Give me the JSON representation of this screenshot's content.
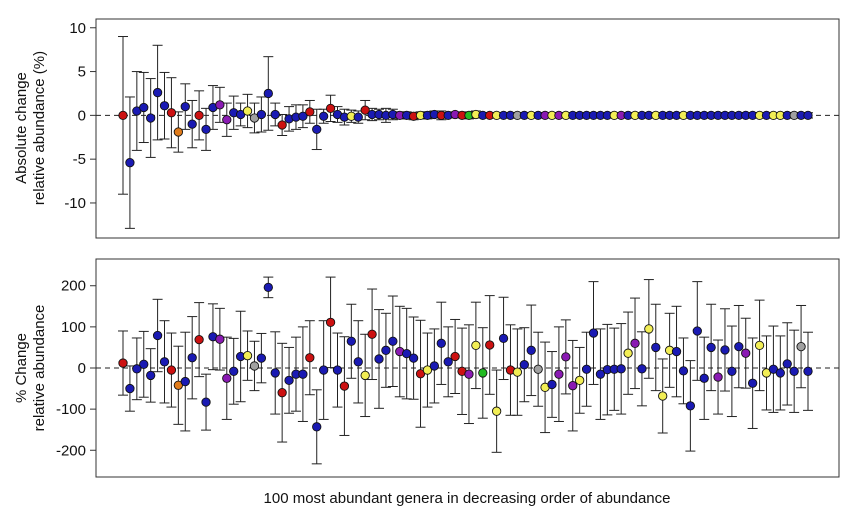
{
  "chart_data": [
    {
      "type": "scatter",
      "ylabel_lines": [
        "Absolute change",
        "relative abundance (%)"
      ],
      "ylim": [
        -14,
        11
      ],
      "yticks": [
        10,
        5,
        0,
        -5,
        -10
      ],
      "ytick_labels": [
        "10",
        "5",
        "0",
        "-5",
        "-10"
      ],
      "xlim": [
        -1,
        100
      ],
      "reference_line": {
        "y": 0,
        "style": "dashed"
      },
      "grid": false,
      "series": [
        {
          "x": [
            0,
            1,
            2,
            3,
            4,
            5,
            6,
            7,
            8,
            9,
            10,
            11,
            12,
            13,
            14,
            15,
            16,
            17,
            18,
            19,
            20,
            21,
            22,
            23,
            24,
            25,
            26,
            27,
            28,
            29,
            30,
            31,
            32,
            33,
            34,
            35,
            36,
            37,
            38,
            39,
            40,
            41,
            42,
            43,
            44,
            45,
            46,
            47,
            48,
            49,
            50,
            51,
            52,
            53,
            54,
            55,
            56,
            57,
            58,
            59,
            60,
            61,
            62,
            63,
            64,
            65,
            66,
            67,
            68,
            69,
            70,
            71,
            72,
            73,
            74,
            75,
            76,
            77,
            78,
            79,
            80,
            81,
            82,
            83,
            84,
            85,
            86,
            87,
            88,
            89,
            90,
            91,
            92,
            93,
            94,
            95,
            96,
            97,
            98,
            99
          ],
          "y": [
            0.0,
            -5.4,
            0.5,
            0.9,
            -0.3,
            2.6,
            1.1,
            0.3,
            -1.9,
            1.0,
            -1.0,
            0.0,
            -1.6,
            0.9,
            1.2,
            -0.5,
            0.3,
            0.1,
            0.5,
            -0.3,
            0.1,
            2.5,
            0.1,
            -1.1,
            -0.4,
            -0.2,
            -0.1,
            0.4,
            -1.6,
            -0.1,
            0.8,
            0.1,
            -0.2,
            -0.1,
            -0.2,
            0.6,
            0.1,
            0.1,
            0.0,
            0.1,
            0.0,
            0.0,
            -0.1,
            0.0,
            0.0,
            0.1,
            0.0,
            0.0,
            0.1,
            0.0,
            0.0,
            0.1,
            0.0,
            0.0,
            0.0,
            0.0,
            0.0,
            0.0,
            0.0,
            0.0,
            0.0,
            0.0,
            0.0,
            0.0,
            0.0,
            0.0,
            0.0,
            0.0,
            0.0,
            0.0,
            0.0,
            0.0,
            0.0,
            0.0,
            0.0,
            0.0,
            0.0,
            0.0,
            0.0,
            0.0,
            0.0,
            0.0,
            0.0,
            0.0,
            0.0,
            0.0,
            0.0,
            0.0,
            0.0,
            0.0,
            0.0,
            0.0,
            0.0,
            0.0,
            0.0,
            0.0,
            0.0,
            0.0,
            0.0,
            0.0
          ],
          "error": [
            9.0,
            7.5,
            4.5,
            4.0,
            4.5,
            5.4,
            3.8,
            4.0,
            2.3,
            2.6,
            2.7,
            2.8,
            2.4,
            2.5,
            2.0,
            1.9,
            1.9,
            1.3,
            1.9,
            1.7,
            2.0,
            4.2,
            1.3,
            1.2,
            1.4,
            1.4,
            1.3,
            1.3,
            2.3,
            0.8,
            1.5,
            0.9,
            0.9,
            0.7,
            0.7,
            1.1,
            0.7,
            0.6,
            0.8,
            0.6,
            0.4,
            0.4,
            0.4,
            0.4,
            0.4,
            0.4,
            0.5,
            0.3,
            0.3,
            0.3,
            0.4,
            0.4,
            0.3,
            0.3,
            0.3,
            0.3,
            0.3,
            0.3,
            0.3,
            0.3,
            0.3,
            0.3,
            0.3,
            0.3,
            0.3,
            0.3,
            0.3,
            0.3,
            0.3,
            0.3,
            0.3,
            0.3,
            0.3,
            0.3,
            0.3,
            0.3,
            0.3,
            0.3,
            0.3,
            0.3,
            0.3,
            0.3,
            0.3,
            0.3,
            0.3,
            0.3,
            0.3,
            0.3,
            0.3,
            0.3,
            0.3,
            0.3,
            0.3,
            0.3,
            0.3,
            0.3,
            0.3,
            0.3,
            0.3,
            0.3
          ],
          "colors": [
            "#cc1111",
            "#1a1ab3",
            "#1a1ab3",
            "#1a1ab3",
            "#1a1ab3",
            "#1a1ab3",
            "#1a1ab3",
            "#cc1111",
            "#e07b1a",
            "#1a1ab3",
            "#1a1ab3",
            "#cc1111",
            "#1a1ab3",
            "#1a1ab3",
            "#8a1ab3",
            "#8a1ab3",
            "#1a1ab3",
            "#1a1ab3",
            "#f2ee55",
            "#a0a0a0",
            "#1a1ab3",
            "#1a1ab3",
            "#1a1ab3",
            "#cc1111",
            "#1a1ab3",
            "#1a1ab3",
            "#1a1ab3",
            "#cc1111",
            "#1a1ab3",
            "#1a1ab3",
            "#cc1111",
            "#1a1ab3",
            "#1a1ab3",
            "#f2ee55",
            "#1a1ab3",
            "#cc1111",
            "#1a1ab3",
            "#1a1ab3",
            "#1a1ab3",
            "#1a1ab3",
            "#8a1ab3",
            "#1a1ab3",
            "#cc1111",
            "#f2ee55",
            "#1a1ab3",
            "#1a1ab3",
            "#cc1111",
            "#1a1ab3",
            "#8a1ab3",
            "#cc1111",
            "#22bb22",
            "#f2ee55",
            "#1a1ab3",
            "#cc1111",
            "#f2ee55",
            "#1a1ab3",
            "#1a1ab3",
            "#a0a0a0",
            "#1a1ab3",
            "#f2ee55",
            "#1a1ab3",
            "#8a1ab3",
            "#f2ee55",
            "#8a1ab3",
            "#f2ee55",
            "#1a1ab3",
            "#1a1ab3",
            "#1a1ab3",
            "#1a1ab3",
            "#1a1ab3",
            "#1a1ab3",
            "#f2ee55",
            "#8a1ab3",
            "#1a1ab3",
            "#f2ee55",
            "#1a1ab3",
            "#1a1ab3",
            "#f2ee55",
            "#1a1ab3",
            "#1a1ab3",
            "#1a1ab3",
            "#f2ee55",
            "#1a1ab3",
            "#1a1ab3",
            "#1a1ab3",
            "#1a1ab3",
            "#1a1ab3",
            "#1a1ab3",
            "#1a1ab3",
            "#1a1ab3",
            "#1a1ab3",
            "#1a1ab3",
            "#f2ee55",
            "#1a1ab3",
            "#f2ee55",
            "#f2ee55",
            "#1a1ab3",
            "#a0a0a0",
            "#1a1ab3",
            "#1a1ab3"
          ]
        }
      ]
    },
    {
      "type": "scatter",
      "ylabel_lines": [
        "% Change",
        "relative abundance"
      ],
      "xlabel": "100 most abundant genera in decreasing order of abundance",
      "ylim": [
        -265,
        265
      ],
      "yticks": [
        200,
        100,
        0,
        -100,
        -200
      ],
      "ytick_labels": [
        "200",
        "100",
        "0",
        "-100",
        "-200"
      ],
      "xlim": [
        -1,
        100
      ],
      "reference_line": {
        "y": 0,
        "style": "dashed"
      },
      "grid": false,
      "series": [
        {
          "x": [
            0,
            1,
            2,
            3,
            4,
            5,
            6,
            7,
            8,
            9,
            10,
            11,
            12,
            13,
            14,
            15,
            16,
            17,
            18,
            19,
            20,
            21,
            22,
            23,
            24,
            25,
            26,
            27,
            28,
            29,
            30,
            31,
            32,
            33,
            34,
            35,
            36,
            37,
            38,
            39,
            40,
            41,
            42,
            43,
            44,
            45,
            46,
            47,
            48,
            49,
            50,
            51,
            52,
            53,
            54,
            55,
            56,
            57,
            58,
            59,
            60,
            61,
            62,
            63,
            64,
            65,
            66,
            67,
            68,
            69,
            70,
            71,
            72,
            73,
            74,
            75,
            76,
            77,
            78,
            79,
            80,
            81,
            82,
            83,
            84,
            85,
            86,
            87,
            88,
            89,
            90,
            91,
            92,
            93,
            94,
            95,
            96,
            97,
            98,
            99
          ],
          "y": [
            12,
            -50,
            -2,
            9,
            -18,
            79,
            15,
            -5,
            -42,
            -33,
            25,
            69,
            -83,
            76,
            70,
            -25,
            -8,
            28,
            30,
            5,
            24,
            196,
            -12,
            -60,
            -30,
            -15,
            -15,
            25,
            -143,
            -5,
            111,
            -5,
            -44,
            65,
            15,
            -18,
            82,
            22,
            43,
            65,
            40,
            35,
            24,
            -14,
            -5,
            5,
            60,
            15,
            28,
            -8,
            -15,
            55,
            -12,
            56,
            -105,
            72,
            -5,
            -10,
            8,
            43,
            -3,
            -47,
            -40,
            -15,
            27,
            -43,
            -30,
            -3,
            85,
            -15,
            -4,
            -3,
            -2,
            36,
            60,
            -2,
            95,
            50,
            -68,
            43,
            40,
            -7,
            -92,
            90,
            -25,
            50,
            -22,
            44,
            -8,
            52,
            36,
            -37,
            55,
            -12,
            -3,
            -12,
            10,
            -8,
            52,
            -8
          ],
          "error": [
            78,
            55,
            75,
            80,
            65,
            88,
            100,
            90,
            95,
            120,
            100,
            90,
            68,
            80,
            75,
            100,
            80,
            110,
            60,
            60,
            60,
            25,
            100,
            120,
            80,
            90,
            115,
            90,
            90,
            120,
            110,
            90,
            120,
            90,
            100,
            100,
            110,
            120,
            90,
            110,
            110,
            110,
            100,
            130,
            90,
            90,
            100,
            85,
            90,
            105,
            120,
            105,
            110,
            120,
            100,
            100,
            110,
            105,
            90,
            110,
            90,
            110,
            80,
            115,
            90,
            110,
            80,
            90,
            125,
            110,
            110,
            100,
            110,
            100,
            110,
            90,
            120,
            105,
            90,
            90,
            110,
            80,
            110,
            120,
            100,
            105,
            90,
            100,
            110,
            100,
            85,
            110,
            110,
            90,
            105,
            90,
            100,
            100,
            100,
            95
          ],
          "colors": [
            "#cc1111",
            "#1a1ab3",
            "#1a1ab3",
            "#1a1ab3",
            "#1a1ab3",
            "#1a1ab3",
            "#1a1ab3",
            "#cc1111",
            "#e07b1a",
            "#1a1ab3",
            "#1a1ab3",
            "#cc1111",
            "#1a1ab3",
            "#1a1ab3",
            "#8a1ab3",
            "#8a1ab3",
            "#1a1ab3",
            "#1a1ab3",
            "#f2ee55",
            "#a0a0a0",
            "#1a1ab3",
            "#1a1ab3",
            "#1a1ab3",
            "#cc1111",
            "#1a1ab3",
            "#1a1ab3",
            "#1a1ab3",
            "#cc1111",
            "#1a1ab3",
            "#1a1ab3",
            "#cc1111",
            "#1a1ab3",
            "#cc1111",
            "#1a1ab3",
            "#1a1ab3",
            "#f2ee55",
            "#cc1111",
            "#1a1ab3",
            "#1a1ab3",
            "#1a1ab3",
            "#8a1ab3",
            "#1a1ab3",
            "#1a1ab3",
            "#cc1111",
            "#f2ee55",
            "#1a1ab3",
            "#1a1ab3",
            "#1a1ab3",
            "#cc1111",
            "#cc1111",
            "#8a1ab3",
            "#f2ee55",
            "#22bb22",
            "#cc1111",
            "#f2ee55",
            "#1a1ab3",
            "#cc1111",
            "#f2ee55",
            "#1a1ab3",
            "#1a1ab3",
            "#a0a0a0",
            "#f2ee55",
            "#1a1ab3",
            "#8a1ab3",
            "#8a1ab3",
            "#8a1ab3",
            "#f2ee55",
            "#1a1ab3",
            "#1a1ab3",
            "#1a1ab3",
            "#1a1ab3",
            "#1a1ab3",
            "#1a1ab3",
            "#f2ee55",
            "#8a1ab3",
            "#1a1ab3",
            "#f2ee55",
            "#1a1ab3",
            "#f2ee55",
            "#f2ee55",
            "#1a1ab3",
            "#1a1ab3",
            "#1a1ab3",
            "#1a1ab3",
            "#1a1ab3",
            "#1a1ab3",
            "#8a1ab3",
            "#1a1ab3",
            "#1a1ab3",
            "#1a1ab3",
            "#8a1ab3",
            "#1a1ab3",
            "#f2ee55",
            "#f2ee55",
            "#1a1ab3",
            "#1a1ab3",
            "#1a1ab3",
            "#1a1ab3",
            "#a0a0a0",
            "#1a1ab3"
          ]
        }
      ]
    }
  ]
}
